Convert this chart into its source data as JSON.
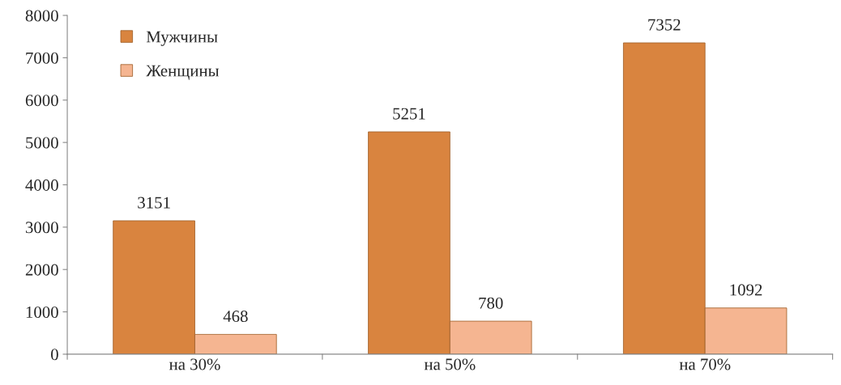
{
  "chart_data": {
    "type": "bar",
    "categories": [
      "на 30%",
      "на 50%",
      "на 70%"
    ],
    "series": [
      {
        "name": "Мужчины",
        "color": "#d9843f",
        "values": [
          3151,
          5251,
          7352
        ]
      },
      {
        "name": "Женщины",
        "color": "#f5b591",
        "values": [
          468,
          780,
          1092
        ]
      }
    ],
    "ylim": [
      0,
      8000
    ],
    "yticks": [
      0,
      1000,
      2000,
      3000,
      4000,
      5000,
      6000,
      7000,
      8000
    ],
    "data_labels": true,
    "grid": false,
    "legend": "top left"
  }
}
